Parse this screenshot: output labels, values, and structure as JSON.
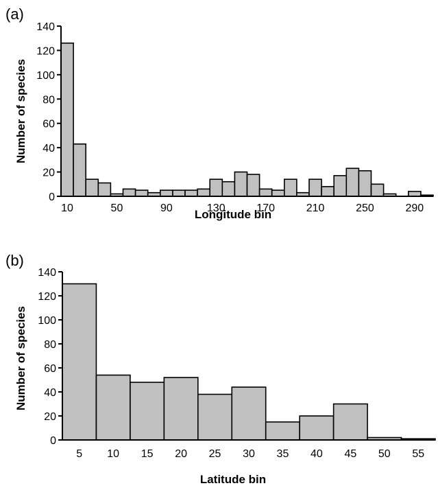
{
  "chart_data": [
    {
      "type": "bar",
      "panel_label": "(a)",
      "xlabel": "Longitude bin",
      "ylabel": "Number of species",
      "ylim": [
        0,
        140
      ],
      "yticks": [
        "0",
        "20",
        "40",
        "60",
        "80",
        "100",
        "120",
        "140"
      ],
      "xtick_labels": [
        "10",
        "50",
        "90",
        "130",
        "170",
        "210",
        "250",
        "290"
      ],
      "categories": [
        10,
        20,
        30,
        40,
        50,
        60,
        70,
        80,
        90,
        100,
        110,
        120,
        130,
        140,
        150,
        160,
        170,
        180,
        190,
        200,
        210,
        220,
        230,
        240,
        250,
        260,
        270,
        280,
        290,
        300
      ],
      "values": [
        126,
        43,
        14,
        11,
        2,
        6,
        5,
        3,
        5,
        5,
        5,
        6,
        14,
        12,
        20,
        18,
        6,
        5,
        14,
        3,
        14,
        8,
        17,
        23,
        21,
        10,
        2,
        0,
        4,
        1
      ],
      "grid": false
    },
    {
      "type": "bar",
      "panel_label": "(b)",
      "xlabel": "Latitude bin",
      "ylabel": "Number of species",
      "ylim": [
        0,
        140
      ],
      "yticks": [
        "0",
        "20",
        "40",
        "60",
        "80",
        "100",
        "120",
        "140"
      ],
      "xtick_labels": [
        "5",
        "10",
        "15",
        "20",
        "25",
        "30",
        "35",
        "40",
        "45",
        "50",
        "55"
      ],
      "categories": [
        5,
        10,
        15,
        20,
        25,
        30,
        35,
        40,
        45,
        50,
        55
      ],
      "values": [
        130,
        54,
        48,
        52,
        38,
        44,
        15,
        20,
        30,
        2,
        1
      ],
      "grid": false
    }
  ]
}
